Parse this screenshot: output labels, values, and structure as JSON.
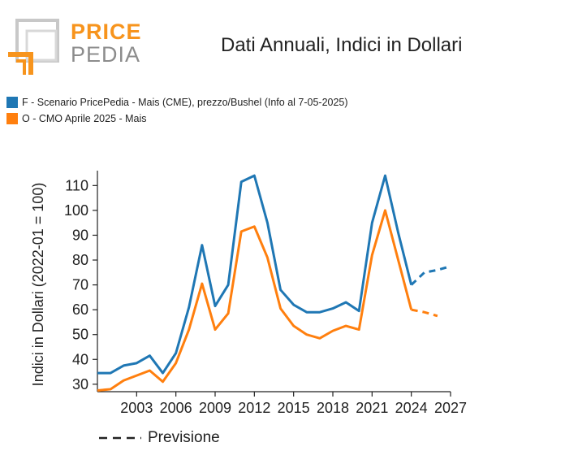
{
  "logo": {
    "word1": "PRICE",
    "word2": "PEDIA",
    "colors": {
      "orange": "#f7941d",
      "gray": "#8c8c8c"
    }
  },
  "chart_data": {
    "type": "line",
    "title": "Dati Annuali, Indici in Dollari",
    "ylabel": "Indici in Dollari (2022-01 = 100)",
    "xlabel": "",
    "xlim": [
      2000,
      2027
    ],
    "ylim": [
      27,
      116
    ],
    "x_ticks": [
      2003,
      2006,
      2009,
      2012,
      2015,
      2018,
      2021,
      2024,
      2027
    ],
    "y_ticks": [
      30,
      40,
      50,
      60,
      70,
      80,
      90,
      100,
      110
    ],
    "legend_position": "top-left",
    "forecast_legend_label": "Previsione",
    "series": [
      {
        "name": "F - Scenario PricePedia - Mais (CME), prezzo/Bushel (Info al 7-05-2025)",
        "color": "#1f77b4",
        "x": [
          2000,
          2001,
          2002,
          2003,
          2004,
          2005,
          2006,
          2007,
          2008,
          2009,
          2010,
          2011,
          2012,
          2013,
          2014,
          2015,
          2016,
          2017,
          2018,
          2019,
          2020,
          2021,
          2022,
          2023,
          2024
        ],
        "values": [
          34.5,
          34.5,
          37.5,
          38.5,
          41.5,
          34.5,
          42.5,
          61,
          86,
          61.5,
          70,
          111.5,
          114,
          95,
          68,
          62,
          59,
          59,
          60.5,
          63,
          59.5,
          95,
          114,
          91,
          70
        ],
        "forecast_x": [
          2024,
          2025,
          2026,
          2027
        ],
        "forecast_values": [
          70,
          75,
          76,
          77.5
        ]
      },
      {
        "name": "O - CMO Aprile 2025 - Mais",
        "color": "#ff7f0e",
        "x": [
          2000,
          2001,
          2002,
          2003,
          2004,
          2005,
          2006,
          2007,
          2008,
          2009,
          2010,
          2011,
          2012,
          2013,
          2014,
          2015,
          2016,
          2017,
          2018,
          2019,
          2020,
          2021,
          2022,
          2023,
          2024
        ],
        "values": [
          27.5,
          28,
          31.5,
          33.5,
          35.5,
          31,
          38.5,
          52,
          70.5,
          52,
          58.5,
          91.5,
          93.5,
          81,
          60.5,
          53.5,
          50,
          48.5,
          51.5,
          53.5,
          52,
          82,
          100,
          80,
          60
        ],
        "forecast_x": [
          2024,
          2025,
          2026
        ],
        "forecast_values": [
          60,
          59,
          57.5
        ]
      }
    ]
  }
}
